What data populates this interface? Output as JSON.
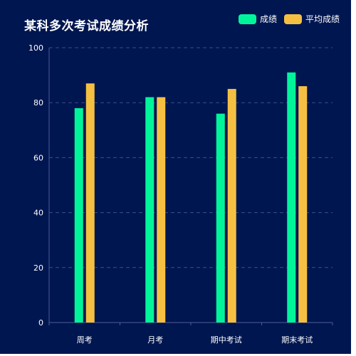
{
  "chart_data": {
    "type": "bar",
    "title": "某科多次考试成绩分析",
    "categories": [
      "周考",
      "月考",
      "期中考试",
      "期末考试"
    ],
    "series": [
      {
        "name": "成绩",
        "values": [
          78,
          82,
          76,
          91
        ],
        "color": "#00f59a"
      },
      {
        "name": "平均成绩",
        "values": [
          87,
          82,
          85,
          86
        ],
        "color": "#f5c042"
      }
    ],
    "ylim": [
      0,
      100
    ],
    "yticks": [
      0,
      20,
      40,
      60,
      80,
      100
    ],
    "grid": true,
    "legend_position": "top-right"
  },
  "colors": {
    "background": "#001650",
    "gridline": "#3a4f86",
    "axis": "#4a5f96"
  }
}
